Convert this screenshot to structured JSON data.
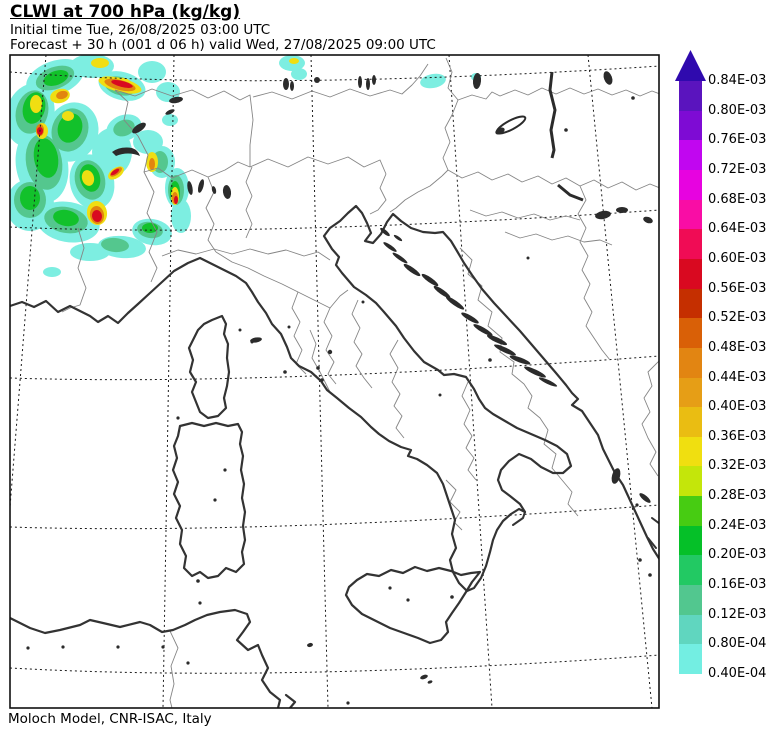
{
  "header": {
    "title": "CLWI at 700 hPa (kg/kg)",
    "initial_time_line": "Initial time  Tue, 26/08/2025  03:00 UTC",
    "forecast_line": "Forecast  +  30 h  (001 d 06 h)  valid Wed, 27/08/2025 09:00 UTC"
  },
  "footer": {
    "credit": "Moloch Model, CNR-ISAC, Italy"
  },
  "colorbar": {
    "arrow_color": "#2f0aae",
    "labels_top_to_bottom": [
      "0.84E-03",
      "0.80E-03",
      "0.76E-03",
      "0.72E-03",
      "0.68E-03",
      "0.64E-03",
      "0.60E-03",
      "0.56E-03",
      "0.52E-03",
      "0.48E-03",
      "0.44E-03",
      "0.40E-03",
      "0.36E-03",
      "0.32E-03",
      "0.28E-03",
      "0.24E-03",
      "0.20E-03",
      "0.16E-03",
      "0.12E-03",
      "0.80E-04",
      "0.40E-04"
    ],
    "segment_colors_top_to_bottom": [
      "#5a14be",
      "#7e0bd4",
      "#c106f0",
      "#e703e0",
      "#f90da5",
      "#f00c55",
      "#d90920",
      "#c52f00",
      "#d96007",
      "#e28512",
      "#e69e16",
      "#eabd12",
      "#f0df10",
      "#c4e60a",
      "#47cc12",
      "#05c028",
      "#22c963",
      "#52c78f",
      "#60d6bf",
      "#73eee2"
    ]
  },
  "chart_data": {
    "type": "heatmap",
    "title": "CLWI at 700 hPa (kg/kg)",
    "variable": "CLWI (cloud liquid water)",
    "level": "700 hPa",
    "units": "kg/kg",
    "initial_time": "Tue, 26/08/2025 03:00 UTC",
    "forecast_step": "+ 30 h (001 d 06 h)",
    "valid_time": "Wed, 27/08/2025 09:00 UTC",
    "model": "Moloch Model, CNR-ISAC, Italy",
    "region": "Italy and central Mediterranean",
    "legend_position": "right",
    "grid": "dashed lat-lon graticule",
    "levels_kg_per_kg": [
      4e-05,
      8e-05,
      0.00012,
      0.00016,
      0.0002,
      0.00024,
      0.00028,
      0.00032,
      0.00036,
      0.0004,
      0.00044,
      0.00048,
      0.00052,
      0.00056,
      0.0006,
      0.00064,
      0.00068,
      0.00072,
      0.00076,
      0.0008,
      0.00084
    ],
    "level_colors_low_to_high": [
      "#73eee2",
      "#60d6bf",
      "#52c78f",
      "#22c963",
      "#05c028",
      "#47cc12",
      "#c4e60a",
      "#f0df10",
      "#eabd12",
      "#e69e16",
      "#e28512",
      "#d96007",
      "#c52f00",
      "#d90920",
      "#f00c55",
      "#f90da5",
      "#e703e0",
      "#c106f0",
      "#7e0bd4",
      "#5a14be"
    ],
    "active_regions": [
      {
        "area": "southeastern France and western Alps (map NW quadrant)",
        "description": "large broken cloud-water field, background 0.4E-04 to 0.2E-03 with embedded convective cores",
        "core_values_kg_per_kg": "0.4E-03 to 0.6E-03"
      },
      {
        "area": "arc NW of Lake Geneva / Jura",
        "description": "elongated orange-red streak core",
        "core_values_kg_per_kg": "~0.56E-03"
      },
      {
        "area": "Massif Central to Rhone valley",
        "description": "scattered yellow-orange cells with red cores",
        "core_values_kg_per_kg": "0.4E-03 to 0.56E-03"
      },
      {
        "area": "southern Germany near map top edge",
        "description": "small cyan patches with tiny yellow core",
        "core_values_kg_per_kg": "0.4E-04 to 0.32E-03"
      },
      {
        "area": "Austria / Hungary border near top edge",
        "description": "isolated thin cyan patches",
        "core_values_kg_per_kg": "0.4E-04 to 0.8E-04"
      },
      {
        "area": "rest of domain (Italy, Adriatic, Tyrrhenian, North Africa)",
        "description": "no cloud liquid water shown (blank)",
        "core_values_kg_per_kg": "below 0.4E-04"
      }
    ]
  }
}
